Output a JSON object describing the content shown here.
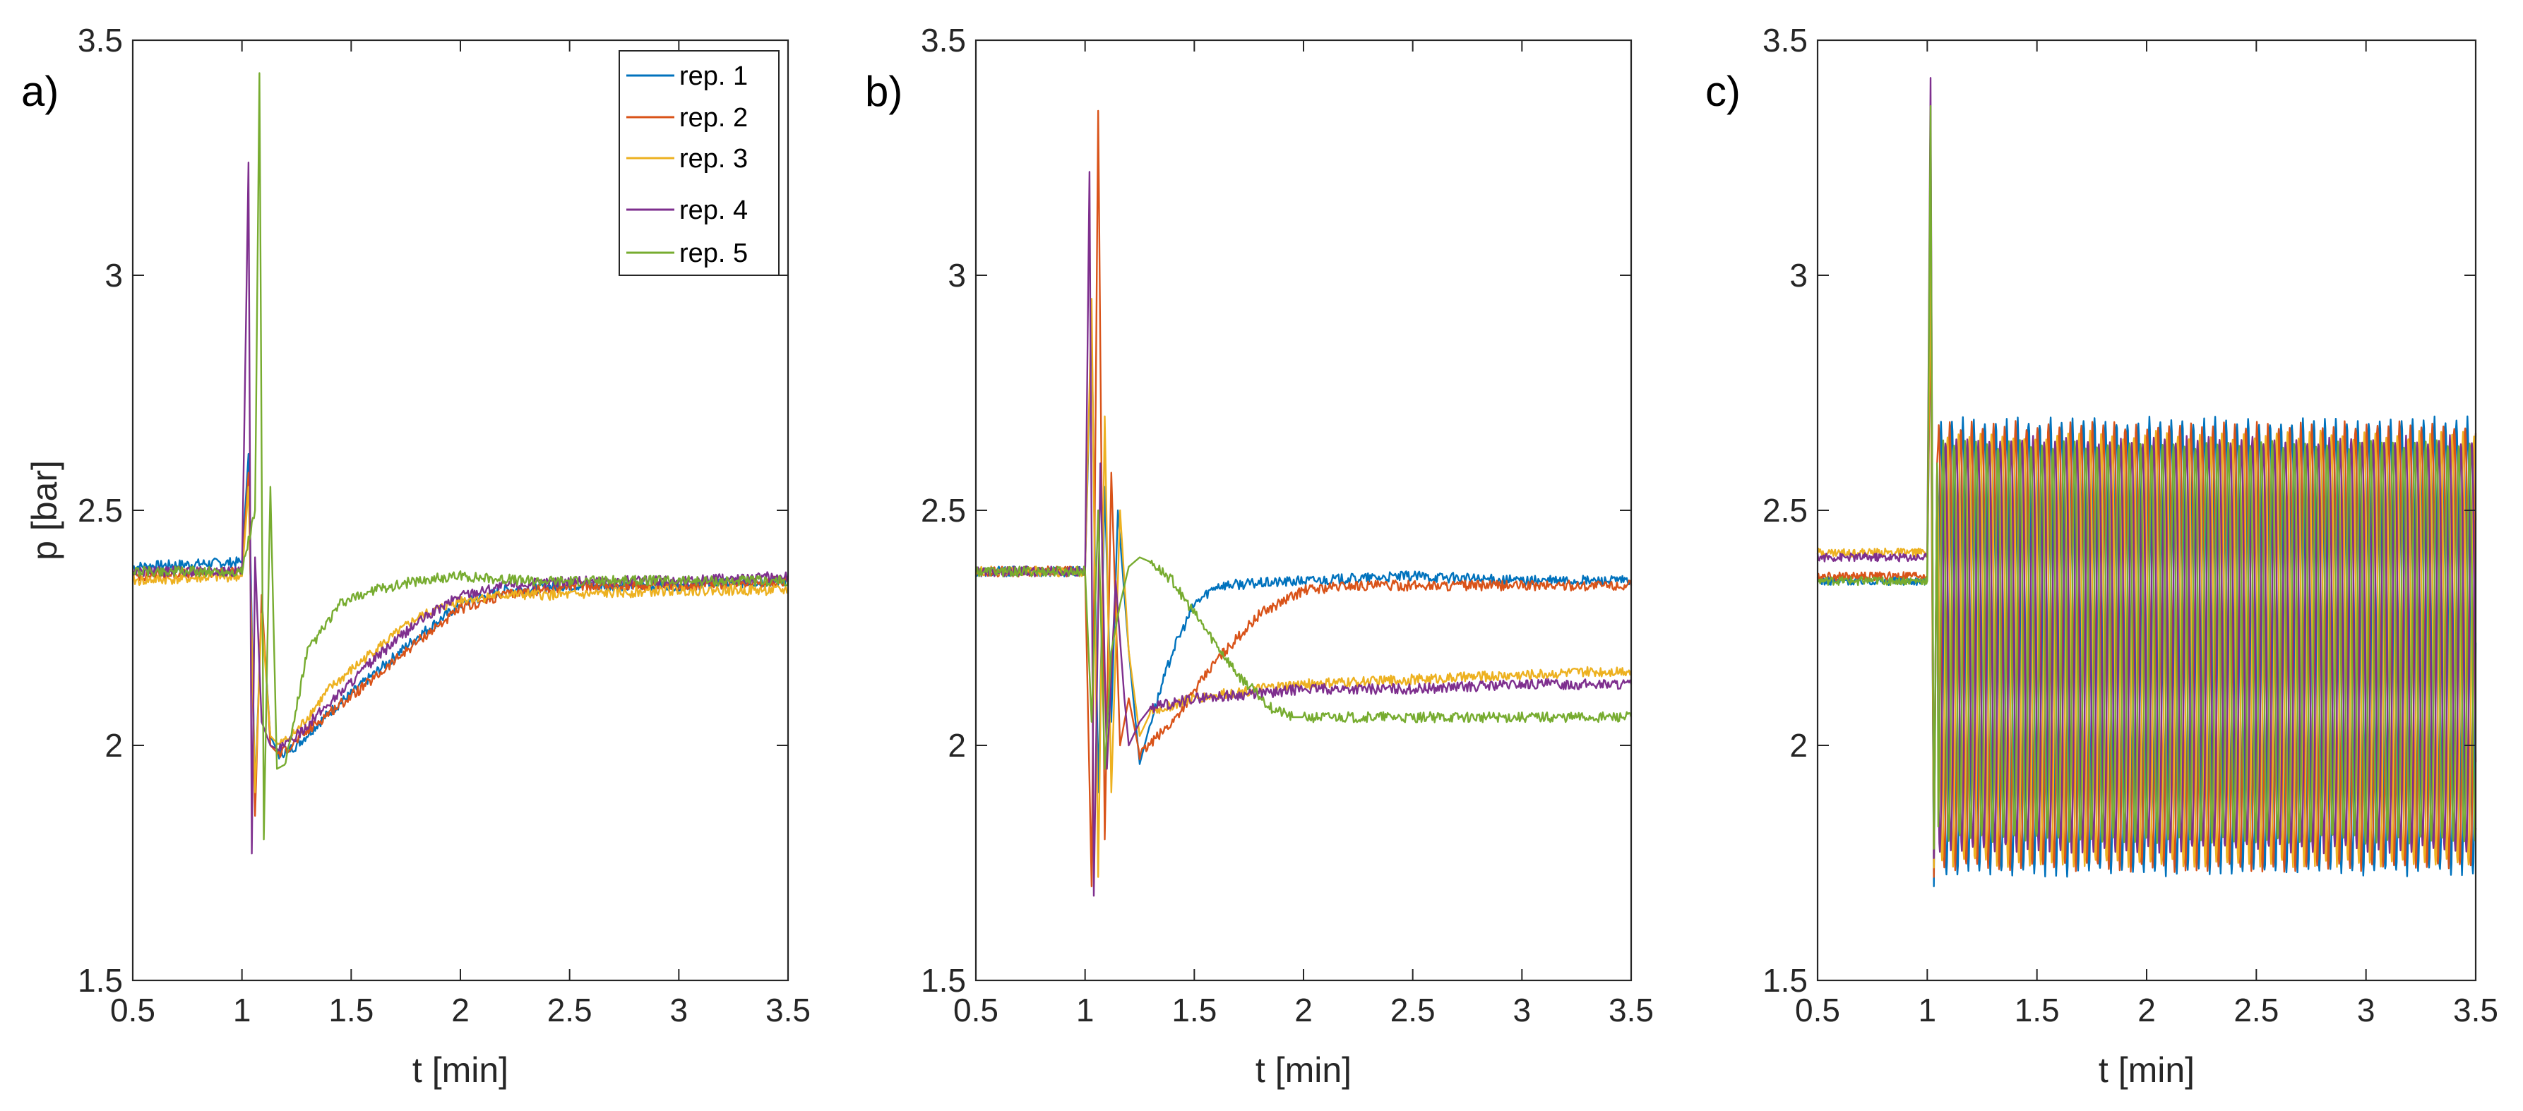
{
  "chart_data": [
    {
      "type": "line",
      "panel_label": "a)",
      "xlabel": "t [min]",
      "ylabel": "p [bar]",
      "xlim": [
        0.5,
        3.5
      ],
      "ylim": [
        1.5,
        3.5
      ],
      "x_ticks": [
        "0.5",
        "1",
        "1.5",
        "2",
        "2.5",
        "3",
        "3.5"
      ],
      "y_ticks": [
        "1.5",
        "2",
        "2.5",
        "3",
        "3.5"
      ],
      "legend": {
        "position": "top-right",
        "entries": [
          "rep. 1",
          "rep. 2",
          "rep. 3",
          "rep. 4",
          "rep. 5"
        ]
      },
      "series": [
        {
          "name": "rep. 1",
          "color": "#0072BD",
          "x": [
            0.5,
            1.0,
            1.03,
            1.06,
            1.09,
            1.13,
            1.17,
            1.25,
            1.4,
            1.6,
            1.8,
            2.0,
            2.2,
            2.5,
            3.0,
            3.5
          ],
          "y": [
            2.38,
            2.39,
            2.62,
            1.9,
            2.3,
            2.02,
            1.98,
            2.0,
            2.07,
            2.15,
            2.23,
            2.3,
            2.33,
            2.34,
            2.34,
            2.35
          ]
        },
        {
          "name": "rep. 2",
          "color": "#D95319",
          "x": [
            0.5,
            1.0,
            1.03,
            1.06,
            1.09,
            1.13,
            1.17,
            1.25,
            1.4,
            1.6,
            1.8,
            2.0,
            2.2,
            2.5,
            3.0,
            3.5
          ],
          "y": [
            2.36,
            2.37,
            2.58,
            1.85,
            2.32,
            2.0,
            1.98,
            2.01,
            2.07,
            2.14,
            2.22,
            2.29,
            2.32,
            2.34,
            2.34,
            2.35
          ]
        },
        {
          "name": "rep. 3",
          "color": "#EDB120",
          "x": [
            0.5,
            1.0,
            1.03,
            1.06,
            1.09,
            1.13,
            1.17,
            1.25,
            1.4,
            1.6,
            1.8,
            2.0,
            2.2,
            2.5,
            3.0,
            3.5
          ],
          "y": [
            2.35,
            2.36,
            2.55,
            1.9,
            2.28,
            2.02,
            2.0,
            2.03,
            2.12,
            2.2,
            2.27,
            2.31,
            2.32,
            2.32,
            2.33,
            2.33
          ]
        },
        {
          "name": "rep. 4",
          "color": "#7E2F8E",
          "x": [
            0.5,
            1.0,
            1.03,
            1.045,
            1.06,
            1.09,
            1.13,
            1.17,
            1.25,
            1.4,
            1.6,
            1.8,
            2.0,
            2.2,
            2.5,
            3.0,
            3.5
          ],
          "y": [
            2.37,
            2.37,
            3.24,
            1.77,
            2.4,
            2.05,
            2.0,
            1.99,
            2.02,
            2.09,
            2.18,
            2.26,
            2.32,
            2.34,
            2.35,
            2.35,
            2.36
          ]
        },
        {
          "name": "rep. 5",
          "color": "#77AC30",
          "x": [
            0.5,
            1.0,
            1.06,
            1.08,
            1.1,
            1.13,
            1.16,
            1.2,
            1.3,
            1.45,
            1.6,
            1.8,
            2.0,
            2.3,
            2.6,
            3.0,
            3.5
          ],
          "y": [
            2.37,
            2.37,
            2.5,
            3.43,
            1.8,
            2.55,
            1.95,
            1.96,
            2.2,
            2.3,
            2.33,
            2.35,
            2.36,
            2.35,
            2.35,
            2.35,
            2.35
          ]
        }
      ]
    },
    {
      "type": "line",
      "panel_label": "b)",
      "xlabel": "t [min]",
      "ylabel": "",
      "xlim": [
        0.5,
        3.5
      ],
      "ylim": [
        1.5,
        3.5
      ],
      "x_ticks": [
        "0.5",
        "1",
        "1.5",
        "2",
        "2.5",
        "3",
        "3.5"
      ],
      "y_ticks": [
        "1.5",
        "2",
        "2.5",
        "3",
        "3.5"
      ],
      "series": [
        {
          "name": "rep. 1",
          "color": "#0072BD",
          "x": [
            0.5,
            1.0,
            1.03,
            1.06,
            1.09,
            1.12,
            1.15,
            1.2,
            1.25,
            1.3,
            1.4,
            1.5,
            1.6,
            2.0,
            2.5,
            3.0,
            3.5
          ],
          "y": [
            2.37,
            2.37,
            2.9,
            1.9,
            2.55,
            2.05,
            2.5,
            2.2,
            1.96,
            2.05,
            2.2,
            2.3,
            2.34,
            2.35,
            2.36,
            2.35,
            2.35
          ]
        },
        {
          "name": "rep. 2",
          "color": "#D95319",
          "x": [
            0.5,
            1.0,
            1.03,
            1.06,
            1.09,
            1.12,
            1.16,
            1.2,
            1.25,
            1.4,
            1.6,
            1.8,
            2.0,
            2.2,
            2.5,
            3.0,
            3.5
          ],
          "y": [
            2.37,
            2.37,
            1.7,
            3.35,
            1.8,
            2.58,
            2.0,
            2.1,
            1.98,
            2.05,
            2.18,
            2.28,
            2.33,
            2.34,
            2.34,
            2.34,
            2.34
          ]
        },
        {
          "name": "rep. 3",
          "color": "#EDB120",
          "x": [
            0.5,
            1.0,
            1.03,
            1.06,
            1.09,
            1.12,
            1.16,
            1.2,
            1.25,
            1.3,
            1.5,
            1.8,
            2.0,
            2.5,
            3.0,
            3.5
          ],
          "y": [
            2.37,
            2.37,
            2.95,
            1.72,
            2.7,
            1.9,
            2.5,
            2.2,
            2.02,
            2.07,
            2.1,
            2.12,
            2.13,
            2.14,
            2.15,
            2.16
          ]
        },
        {
          "name": "rep. 4",
          "color": "#7E2F8E",
          "x": [
            0.5,
            1.0,
            1.02,
            1.04,
            1.07,
            1.1,
            1.14,
            1.18,
            1.2,
            1.25,
            1.3,
            1.5,
            1.8,
            2.0,
            2.5,
            3.0,
            3.5
          ],
          "y": [
            2.37,
            2.37,
            3.22,
            1.68,
            2.6,
            1.95,
            2.35,
            2.1,
            2.0,
            2.05,
            2.08,
            2.1,
            2.11,
            2.12,
            2.12,
            2.13,
            2.13
          ]
        },
        {
          "name": "rep. 5",
          "color": "#77AC30",
          "x": [
            0.5,
            1.0,
            1.03,
            1.06,
            1.09,
            1.12,
            1.16,
            1.2,
            1.25,
            1.3,
            1.4,
            1.5,
            1.7,
            1.85,
            1.95,
            2.0,
            2.5,
            3.0,
            3.5
          ],
          "y": [
            2.37,
            2.37,
            2.05,
            2.5,
            1.95,
            2.2,
            2.3,
            2.38,
            2.4,
            2.39,
            2.35,
            2.28,
            2.15,
            2.08,
            2.06,
            2.06,
            2.06,
            2.06,
            2.06
          ]
        }
      ]
    },
    {
      "type": "line",
      "panel_label": "c)",
      "xlabel": "t [min]",
      "ylabel": "",
      "xlim": [
        0.5,
        3.5
      ],
      "ylim": [
        1.5,
        3.5
      ],
      "x_ticks": [
        "0.5",
        "1",
        "1.5",
        "2",
        "2.5",
        "3",
        "3.5"
      ],
      "y_ticks": [
        "1.5",
        "2",
        "2.5",
        "3",
        "3.5"
      ],
      "oscillation": {
        "start_min": 1.05,
        "period_min": 0.05,
        "approx_min": 1.75,
        "approx_max": 2.68
      },
      "series": [
        {
          "name": "rep. 1",
          "color": "#0072BD",
          "pre_level": 2.35,
          "peak": 2.95,
          "osc_low": 1.73,
          "osc_high": 2.69
        },
        {
          "name": "rep. 2",
          "color": "#D95319",
          "pre_level": 2.36,
          "peak": 2.97,
          "osc_low": 1.74,
          "osc_high": 2.68
        },
        {
          "name": "rep. 3",
          "color": "#EDB120",
          "pre_level": 2.41,
          "peak": 3.06,
          "osc_low": 1.75,
          "osc_high": 2.66
        },
        {
          "name": "rep. 4",
          "color": "#7E2F8E",
          "pre_level": 2.4,
          "peak": 3.42,
          "osc_low": 1.78,
          "osc_high": 2.65
        },
        {
          "name": "rep. 5",
          "color": "#77AC30",
          "pre_level": 2.35,
          "peak": 3.36,
          "osc_low": 1.8,
          "osc_high": 2.64
        }
      ]
    }
  ]
}
